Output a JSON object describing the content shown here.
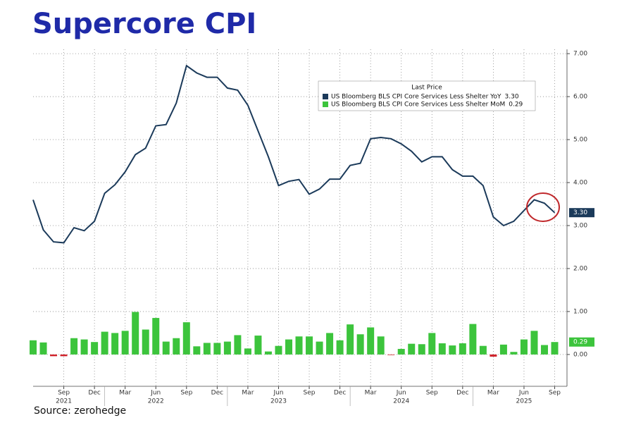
{
  "chart_data": {
    "type": "line_bar",
    "title": "Supercore CPI",
    "source": "Source: zerohedge",
    "legend_title": "Last Price",
    "categories": [
      null,
      null,
      null,
      "Sep",
      null,
      null,
      "Dec",
      null,
      null,
      "Mar",
      null,
      null,
      "Jun",
      null,
      null,
      "Sep",
      null,
      null,
      "Dec",
      null,
      null,
      "Mar",
      null,
      null,
      "Jun",
      null,
      null,
      "Sep",
      null,
      null,
      "Dec",
      null,
      null,
      "Mar",
      null,
      null,
      "Jun",
      null,
      null,
      "Sep",
      null,
      null,
      "Dec",
      null,
      null,
      "Mar",
      null,
      null,
      "Jun",
      null,
      null,
      "Sep"
    ],
    "years": [
      null,
      null,
      null,
      "2021",
      null,
      null,
      null,
      null,
      null,
      null,
      null,
      null,
      "2022",
      null,
      null,
      null,
      null,
      null,
      null,
      null,
      null,
      null,
      null,
      null,
      "2023",
      null,
      null,
      null,
      null,
      null,
      null,
      null,
      null,
      null,
      null,
      null,
      "2024",
      null,
      null,
      null,
      null,
      null,
      null,
      null,
      null,
      null,
      null,
      null,
      "2025",
      null,
      null,
      null
    ],
    "series": [
      {
        "name": "US Bloomberg BLS CPI Core Services Less Shelter YoY",
        "kind": "line",
        "color": "#1b3a5a",
        "values": [
          3.6,
          2.9,
          2.62,
          2.6,
          2.95,
          2.88,
          3.1,
          3.75,
          3.95,
          4.25,
          4.65,
          4.8,
          5.32,
          5.35,
          5.85,
          6.72,
          6.55,
          6.45,
          6.45,
          6.2,
          6.15,
          5.8,
          5.2,
          4.6,
          3.93,
          4.03,
          4.07,
          3.73,
          3.85,
          4.08,
          4.08,
          4.4,
          4.45,
          5.02,
          5.05,
          5.02,
          4.9,
          4.73,
          4.48,
          4.6,
          4.6,
          4.3,
          4.15,
          4.15,
          3.93,
          3.2,
          3.0,
          3.1,
          3.35,
          3.6,
          3.52,
          3.3
        ],
        "value_labels": [
          null,
          null,
          null,
          null,
          null,
          null,
          null,
          null,
          null,
          null,
          null,
          null,
          null,
          null,
          null,
          null,
          null,
          null,
          null,
          null,
          null,
          null,
          null,
          null,
          null,
          null,
          null,
          null,
          null,
          null,
          null,
          null,
          null,
          null,
          null,
          null,
          null,
          null,
          null,
          null,
          null,
          null,
          null,
          null,
          null,
          null,
          null,
          null,
          null,
          null,
          null,
          "3.30"
        ]
      },
      {
        "name": "US Bloomberg BLS CPI Core Services Less Shelter MoM",
        "kind": "bar",
        "color": "#3cc43c",
        "negative_color": "#d0222a",
        "values": [
          0.33,
          0.28,
          -0.04,
          -0.04,
          0.38,
          0.35,
          0.29,
          0.53,
          0.5,
          0.55,
          0.99,
          0.58,
          0.85,
          0.3,
          0.38,
          0.75,
          0.19,
          0.27,
          0.27,
          0.3,
          0.45,
          0.14,
          0.44,
          0.07,
          0.2,
          0.35,
          0.42,
          0.42,
          0.3,
          0.5,
          0.33,
          0.7,
          0.47,
          0.63,
          0.42,
          -0.01,
          0.13,
          0.25,
          0.24,
          0.5,
          0.26,
          0.21,
          0.26,
          0.71,
          0.2,
          -0.05,
          0.23,
          0.06,
          0.35,
          0.55,
          0.22,
          0.29
        ],
        "value_labels": [
          null,
          null,
          null,
          null,
          null,
          null,
          null,
          null,
          null,
          null,
          null,
          null,
          null,
          null,
          null,
          null,
          null,
          null,
          null,
          null,
          null,
          null,
          null,
          null,
          null,
          null,
          null,
          null,
          null,
          null,
          null,
          null,
          null,
          null,
          null,
          null,
          null,
          null,
          null,
          null,
          null,
          null,
          null,
          null,
          null,
          null,
          null,
          null,
          null,
          null,
          null,
          "0.29"
        ]
      }
    ],
    "ylim": [
      -0.74,
      7.1
    ],
    "yticks": [
      {
        "value": 0,
        "label": "0.00"
      },
      {
        "value": 1,
        "label": "1.00"
      },
      {
        "value": 2,
        "label": "2.00"
      },
      {
        "value": 3,
        "label": "3.00"
      },
      {
        "value": 4,
        "label": "4.00"
      },
      {
        "value": 5,
        "label": "5.00"
      },
      {
        "value": 6,
        "label": "6.00"
      },
      {
        "value": 7,
        "label": "7.00"
      }
    ],
    "grid": true
  }
}
